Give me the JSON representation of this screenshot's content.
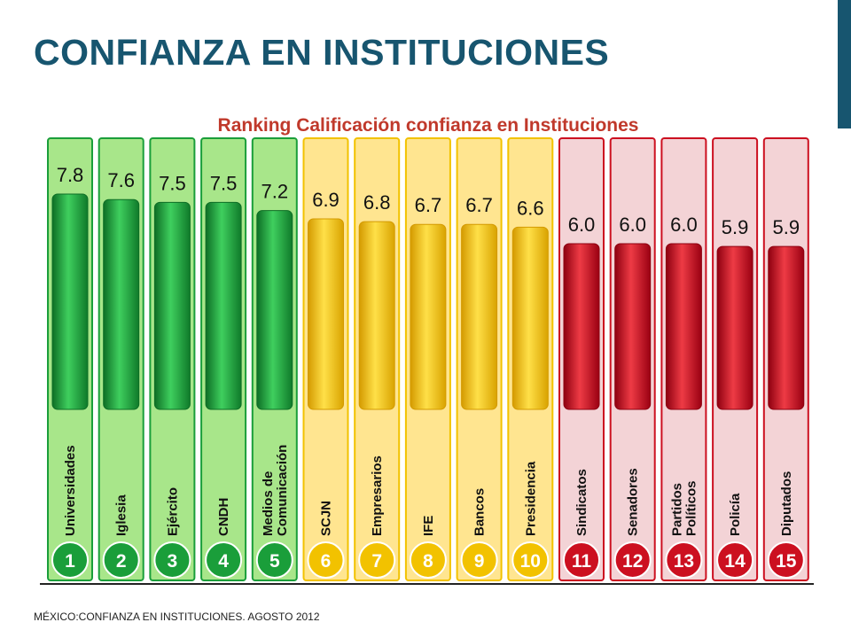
{
  "slide": {
    "title": "CONFIANZA EN INSTITUCIONES",
    "footer": "MÉXICO:CONFIANZA  EN INSTITUCIONES.  AGOSTO 2012"
  },
  "colors": {
    "title": "#17556f",
    "chart_title": "#c0392b",
    "green": "#1a9e3a",
    "yellow": "#f2c200",
    "red": "#cc1020",
    "panel_green": "#a8e68a",
    "panel_yellow": "#ffe590",
    "panel_red": "#f3d3d6"
  },
  "chart_data": {
    "type": "bar",
    "title": "Ranking Calificación confianza en Instituciones",
    "categories": [
      "Universidades",
      "Iglesia",
      "Ejército",
      "CNDH",
      "Medios de Comunicación",
      "SCJN",
      "Empresarios",
      "IFE",
      "Bancos",
      "Presidencia",
      "Sindicatos",
      "Senadores",
      "Partidos Políticos",
      "Policía",
      "Diputados"
    ],
    "ranks": [
      "1",
      "2",
      "3",
      "4",
      "5",
      "6",
      "7",
      "8",
      "9",
      "10",
      "11",
      "12",
      "13",
      "14",
      "15"
    ],
    "values": [
      7.8,
      7.6,
      7.5,
      7.5,
      7.2,
      6.9,
      6.8,
      6.7,
      6.7,
      6.6,
      6.0,
      6.0,
      6.0,
      5.9,
      5.9
    ],
    "value_labels": [
      "7.8",
      "7.6",
      "7.5",
      "7.5",
      "7.2",
      "6.9",
      "6.8",
      "6.7",
      "6.7",
      "6.6",
      "6.0",
      "6.0",
      "6.0",
      "5.9",
      "5.9"
    ],
    "color_groups": [
      "green",
      "green",
      "green",
      "green",
      "green",
      "yellow",
      "yellow",
      "yellow",
      "yellow",
      "yellow",
      "red",
      "red",
      "red",
      "red",
      "red"
    ],
    "ylim": [
      0,
      8
    ],
    "grid": false
  }
}
